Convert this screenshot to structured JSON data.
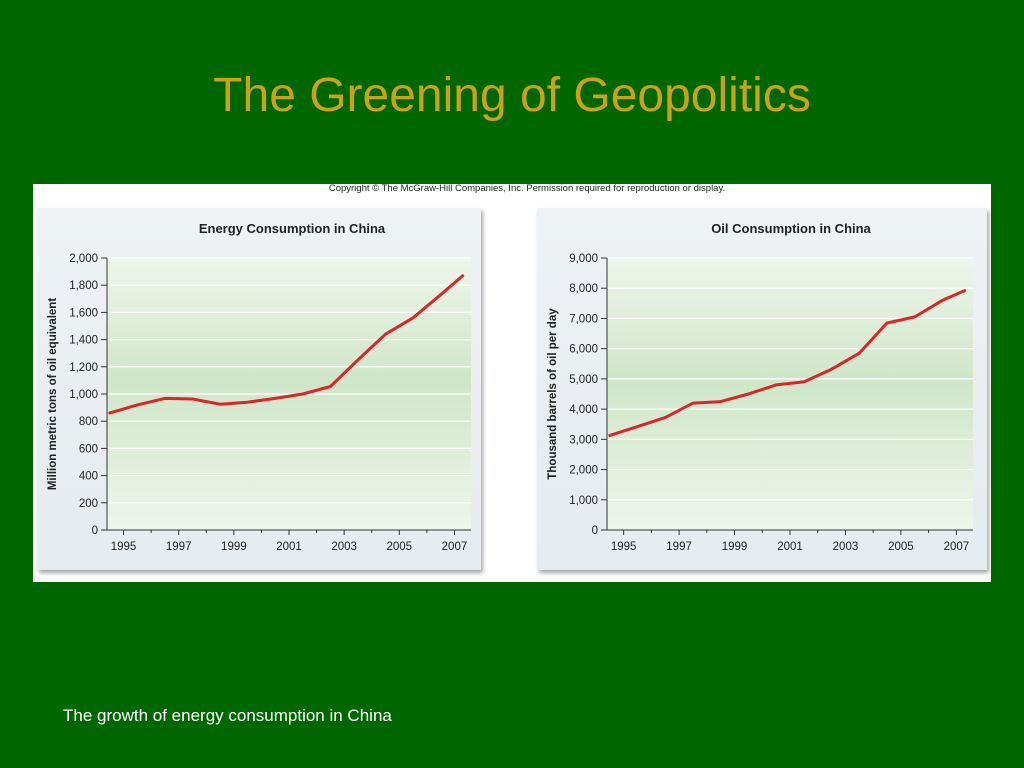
{
  "slide": {
    "title": "The Greening of Geopolitics",
    "copyright": "Copyright © The McGraw-Hill Companies, Inc. Permission required for reproduction or display.",
    "caption": "The growth of energy consumption in China"
  },
  "colors": {
    "background": "#006600",
    "title": "#c8a21a",
    "line": "#d9262a",
    "plot_top": "#cfe6c8",
    "plot_bottom": "#eef6ea"
  },
  "chart_data": [
    {
      "type": "line",
      "title": "Energy Consumption in China",
      "xlabel": "",
      "ylabel": "Million metric tons of oil equivalent",
      "xlim": [
        1994.4,
        2007.6
      ],
      "ylim": [
        0,
        2000
      ],
      "xticks": [
        1995,
        1997,
        1999,
        2001,
        2003,
        2005,
        2007
      ],
      "yticks": [
        0,
        200,
        400,
        600,
        800,
        1000,
        1200,
        1400,
        1600,
        1800,
        2000
      ],
      "ytick_labels": [
        "0",
        "200",
        "400",
        "600",
        "800",
        "1,000",
        "1,200",
        "1,400",
        "1,600",
        "1,800",
        "2,000"
      ],
      "grid": true,
      "series": [
        {
          "x": [
            1994.5,
            1995.5,
            1996.5,
            1997.5,
            1998.5,
            1999.5,
            2000.5,
            2001.5,
            2002.5,
            2003.5,
            2004.5,
            2005.5,
            2006.5,
            2007.3
          ],
          "values": [
            860,
            920,
            968,
            963,
            925,
            940,
            968,
            1000,
            1055,
            1250,
            1440,
            1560,
            1730,
            1870
          ]
        }
      ]
    },
    {
      "type": "line",
      "title": "Oil Consumption in China",
      "xlabel": "",
      "ylabel": "Thousand barrels of oil per day",
      "xlim": [
        1994.4,
        2007.6
      ],
      "ylim": [
        0,
        9000
      ],
      "xticks": [
        1995,
        1997,
        1999,
        2001,
        2003,
        2005,
        2007
      ],
      "yticks": [
        0,
        1000,
        2000,
        3000,
        4000,
        5000,
        6000,
        7000,
        8000,
        9000
      ],
      "ytick_labels": [
        "0",
        "1,000",
        "2,000",
        "3,000",
        "4,000",
        "5,000",
        "6,000",
        "7,000",
        "8,000",
        "9,000"
      ],
      "grid": true,
      "series": [
        {
          "x": [
            1994.5,
            1995.5,
            1996.5,
            1997.5,
            1998.5,
            1999.5,
            2000.5,
            2001.5,
            2002.5,
            2003.5,
            2004.5,
            2005.5,
            2006.5,
            2007.3
          ],
          "values": [
            3130,
            3420,
            3720,
            4200,
            4250,
            4500,
            4800,
            4900,
            5320,
            5850,
            6850,
            7050,
            7600,
            7920
          ]
        }
      ]
    }
  ]
}
